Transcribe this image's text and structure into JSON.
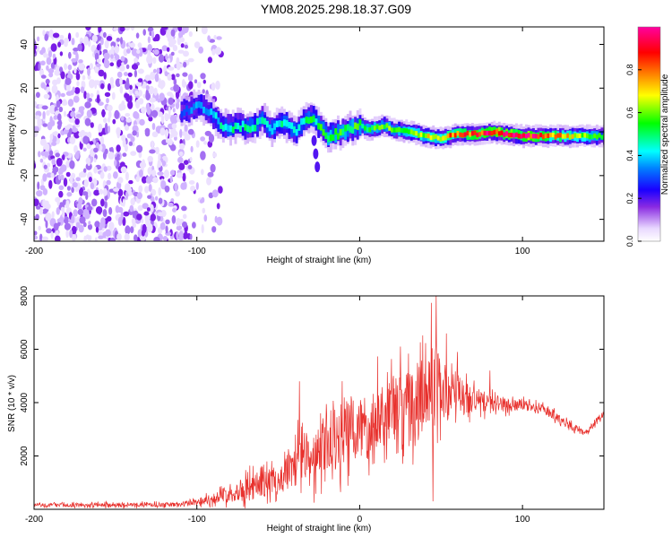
{
  "figure_title": "YM08.2025.298.18.37.G09",
  "chart_data": [
    {
      "type": "heatmap",
      "xlabel": "Height of straight line (km)",
      "ylabel": "Frequency (Hz)",
      "xlim": [
        -200,
        150
      ],
      "ylim": [
        -50,
        48
      ],
      "x_ticks": [
        -200,
        -100,
        0,
        100
      ],
      "y_ticks": [
        -40,
        -20,
        0,
        20,
        40
      ],
      "x_tick_labels": [
        "-200",
        "-100",
        "0",
        "100"
      ],
      "y_tick_labels": [
        "-40",
        "-20",
        "0",
        "20",
        "40"
      ],
      "noise_region_x": [
        -200,
        -95
      ],
      "track": [
        {
          "x": -110,
          "y": 9
        },
        {
          "x": -100,
          "y": 12
        },
        {
          "x": -95,
          "y": 10
        },
        {
          "x": -90,
          "y": 7
        },
        {
          "x": -85,
          "y": 3
        },
        {
          "x": -80,
          "y": 2
        },
        {
          "x": -75,
          "y": 3
        },
        {
          "x": -70,
          "y": 2
        },
        {
          "x": -65,
          "y": 3
        },
        {
          "x": -60,
          "y": 6
        },
        {
          "x": -55,
          "y": 1
        },
        {
          "x": -50,
          "y": 4
        },
        {
          "x": -45,
          "y": 3
        },
        {
          "x": -40,
          "y": 0
        },
        {
          "x": -35,
          "y": 5
        },
        {
          "x": -30,
          "y": 7
        },
        {
          "x": -25,
          "y": 2
        },
        {
          "x": -20,
          "y": -2
        },
        {
          "x": -15,
          "y": -1
        },
        {
          "x": -10,
          "y": 0
        },
        {
          "x": -5,
          "y": 2
        },
        {
          "x": 0,
          "y": 3
        },
        {
          "x": 5,
          "y": 1
        },
        {
          "x": 10,
          "y": 2
        },
        {
          "x": 15,
          "y": 3
        },
        {
          "x": 20,
          "y": 1
        },
        {
          "x": 30,
          "y": 0
        },
        {
          "x": 40,
          "y": -2
        },
        {
          "x": 50,
          "y": -3
        },
        {
          "x": 55,
          "y": -2
        },
        {
          "x": 60,
          "y": -1
        },
        {
          "x": 70,
          "y": -1
        },
        {
          "x": 80,
          "y": 0
        },
        {
          "x": 90,
          "y": -1
        },
        {
          "x": 100,
          "y": -2
        },
        {
          "x": 110,
          "y": -2
        },
        {
          "x": 120,
          "y": -2
        },
        {
          "x": 130,
          "y": -2
        },
        {
          "x": 140,
          "y": -2
        },
        {
          "x": 150,
          "y": -2
        }
      ],
      "track_amplitude": [
        {
          "x": -110,
          "a": 0.3
        },
        {
          "x": -80,
          "a": 0.45
        },
        {
          "x": -40,
          "a": 0.45
        },
        {
          "x": -20,
          "a": 0.55
        },
        {
          "x": 0,
          "a": 0.55
        },
        {
          "x": 30,
          "a": 0.6
        },
        {
          "x": 60,
          "a": 0.8
        },
        {
          "x": 80,
          "a": 0.9
        },
        {
          "x": 100,
          "a": 0.95
        },
        {
          "x": 150,
          "a": 0.5
        }
      ],
      "spur": [
        {
          "x": -28,
          "y": -4
        },
        {
          "x": -27,
          "y": -10
        },
        {
          "x": -26,
          "y": -16
        }
      ],
      "colorbar": {
        "label": "Normalized spectral amplitude",
        "range": [
          0,
          1
        ],
        "ticks": [
          0.0,
          0.2,
          0.4,
          0.6,
          0.8
        ],
        "tick_labels": [
          "0.0",
          "0.2",
          "0.4",
          "0.6",
          "0.8"
        ]
      }
    },
    {
      "type": "line",
      "xlabel": "Height of straight line (km)",
      "ylabel": "SNR (10 * v/v)",
      "xlim": [
        -200,
        150
      ],
      "ylim": [
        0,
        8000
      ],
      "x_ticks": [
        -200,
        -100,
        0,
        100
      ],
      "y_ticks": [
        2000,
        4000,
        6000,
        8000
      ],
      "x_tick_labels": [
        "-200",
        "-100",
        "0",
        "100"
      ],
      "y_tick_labels": [
        "2000",
        "4000",
        "6000",
        "8000"
      ],
      "color": "#e8312d",
      "series": [
        {
          "name": "SNR",
          "envelope": [
            {
              "x": -200,
              "mean": 150,
              "spread": 120
            },
            {
              "x": -110,
              "mean": 180,
              "spread": 150
            },
            {
              "x": -90,
              "mean": 400,
              "spread": 350
            },
            {
              "x": -70,
              "mean": 800,
              "spread": 800
            },
            {
              "x": -50,
              "mean": 1100,
              "spread": 1000
            },
            {
              "x": -40,
              "mean": 1600,
              "spread": 1400
            },
            {
              "x": -35,
              "mean": 2300,
              "spread": 2200
            },
            {
              "x": -30,
              "mean": 1500,
              "spread": 1300
            },
            {
              "x": -20,
              "mean": 2500,
              "spread": 2200
            },
            {
              "x": -10,
              "mean": 2800,
              "spread": 2200
            },
            {
              "x": 0,
              "mean": 3000,
              "spread": 2400
            },
            {
              "x": 10,
              "mean": 3500,
              "spread": 2200
            },
            {
              "x": 20,
              "mean": 3700,
              "spread": 2400
            },
            {
              "x": 30,
              "mean": 3900,
              "spread": 2400
            },
            {
              "x": 40,
              "mean": 4300,
              "spread": 2800
            },
            {
              "x": 45,
              "mean": 4800,
              "spread": 3200
            },
            {
              "x": 50,
              "mean": 4600,
              "spread": 2400
            },
            {
              "x": 60,
              "mean": 4300,
              "spread": 1500
            },
            {
              "x": 70,
              "mean": 4100,
              "spread": 900
            },
            {
              "x": 80,
              "mean": 4000,
              "spread": 600
            },
            {
              "x": 90,
              "mean": 3900,
              "spread": 450
            },
            {
              "x": 100,
              "mean": 3900,
              "spread": 350
            },
            {
              "x": 110,
              "mean": 3800,
              "spread": 300
            },
            {
              "x": 120,
              "mean": 3500,
              "spread": 300
            },
            {
              "x": 130,
              "mean": 3100,
              "spread": 250
            },
            {
              "x": 140,
              "mean": 2900,
              "spread": 200
            },
            {
              "x": 145,
              "mean": 3300,
              "spread": 200
            },
            {
              "x": 150,
              "mean": 3600,
              "spread": 200
            }
          ],
          "peaks": [
            {
              "x": -37,
              "y": 4800
            },
            {
              "x": -24,
              "y": 3600
            },
            {
              "x": 25,
              "y": 6100
            },
            {
              "x": 47,
              "y": 8000
            },
            {
              "x": 43,
              "y": 5500
            },
            {
              "x": 60,
              "y": 5900
            },
            {
              "x": 80,
              "y": 5200
            }
          ],
          "dips": [
            {
              "x": 45,
              "y": 300
            },
            {
              "x": -28,
              "y": 250
            }
          ]
        }
      ]
    }
  ]
}
